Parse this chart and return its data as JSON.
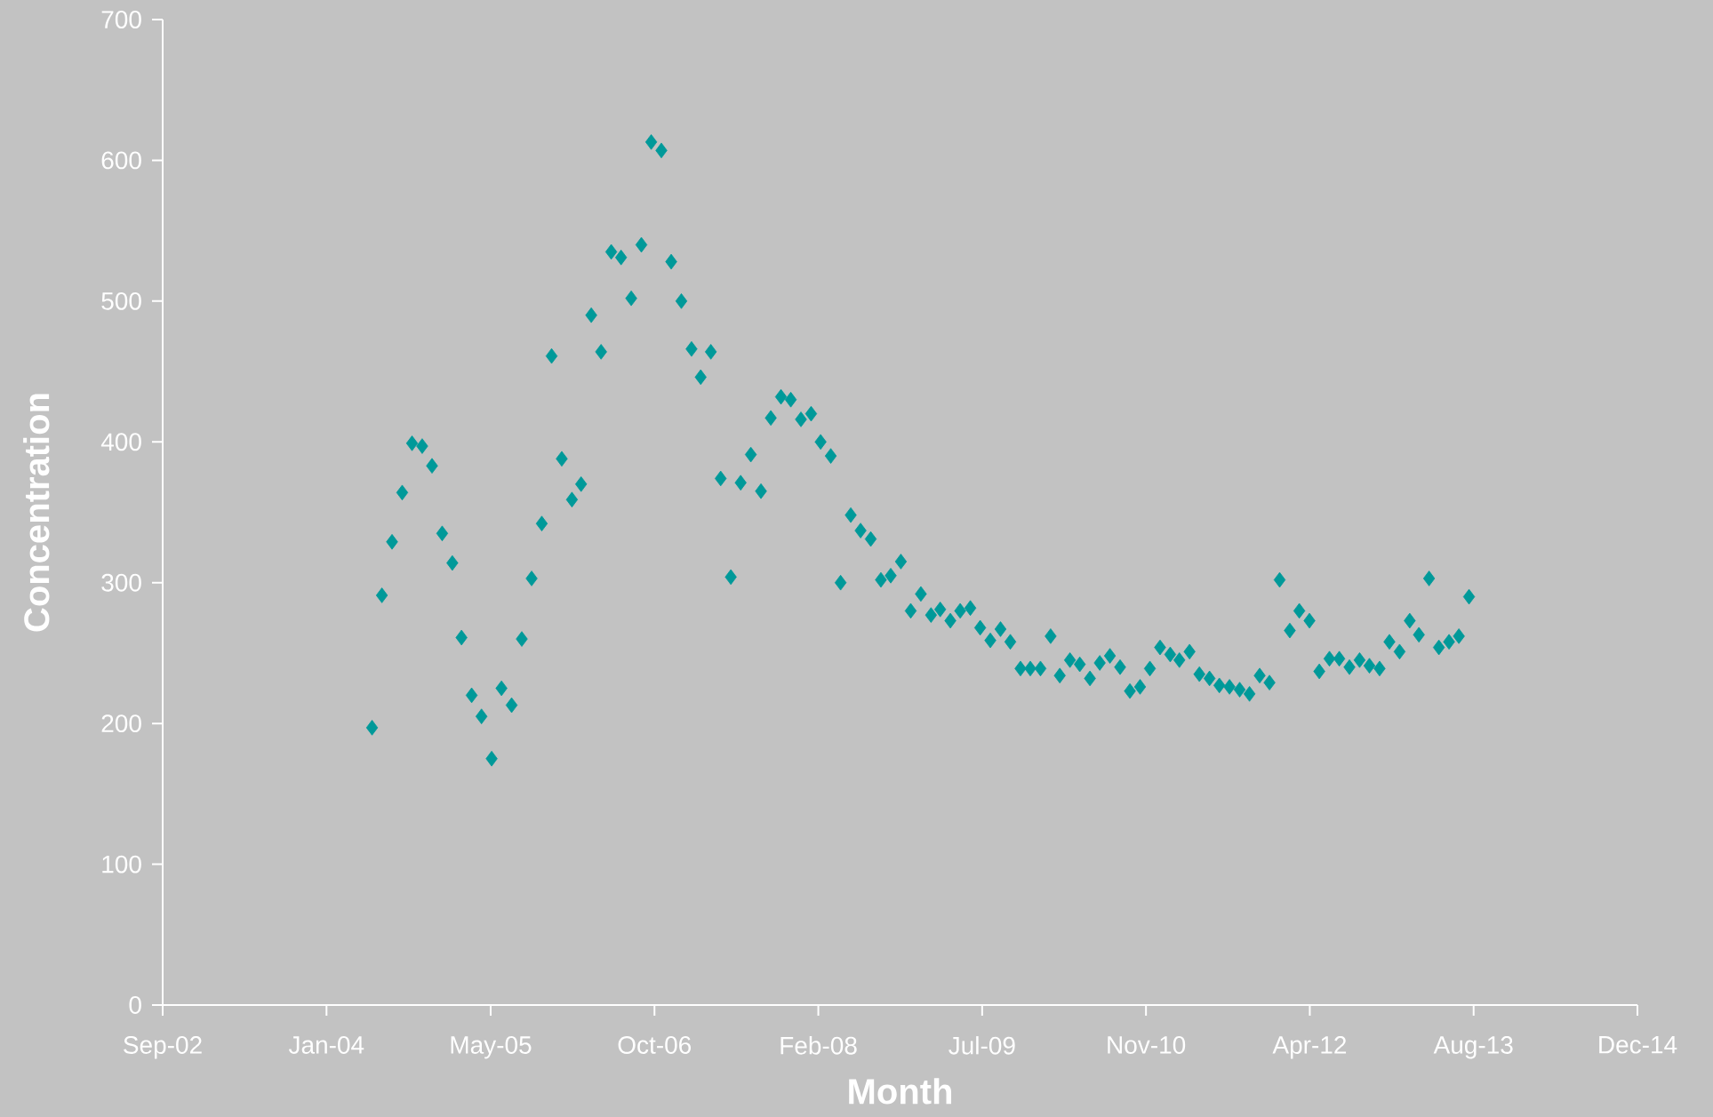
{
  "chart_data": {
    "type": "scatter",
    "xlabel": "Month",
    "ylabel": "Concentration",
    "marker": "diamond",
    "xlim": [
      "2002-09-01",
      "2014-12-28"
    ],
    "xticks": [
      {
        "value": "2002-09-01",
        "label": "Sep-02"
      },
      {
        "value": "2004-01-14",
        "label": "Jan-04"
      },
      {
        "value": "2005-05-29",
        "label": "May-05"
      },
      {
        "value": "2006-10-11",
        "label": "Oct-06"
      },
      {
        "value": "2008-02-23",
        "label": "Feb-08"
      },
      {
        "value": "2009-07-07",
        "label": "Jul-09"
      },
      {
        "value": "2010-11-19",
        "label": "Nov-10"
      },
      {
        "value": "2012-04-02",
        "label": "Apr-12"
      },
      {
        "value": "2013-08-15",
        "label": "Aug-13"
      },
      {
        "value": "2014-12-28",
        "label": "Dec-14"
      }
    ],
    "ylim": [
      0,
      700
    ],
    "yticks": [
      0,
      100,
      200,
      300,
      400,
      500,
      600,
      700
    ],
    "x": [
      "2004-06",
      "2004-07",
      "2004-08",
      "2004-09",
      "2004-10",
      "2004-11",
      "2004-12",
      "2005-01",
      "2005-02",
      "2005-03",
      "2005-04",
      "2005-05",
      "2005-06",
      "2005-07",
      "2005-08",
      "2005-09",
      "2005-10",
      "2005-11",
      "2005-12",
      "2006-01",
      "2006-02",
      "2006-03",
      "2006-04",
      "2006-05",
      "2006-06",
      "2006-07",
      "2006-08",
      "2006-09",
      "2006-10",
      "2006-11",
      "2006-12",
      "2007-01",
      "2007-02",
      "2007-03",
      "2007-04",
      "2007-05",
      "2007-06",
      "2007-07",
      "2007-08",
      "2007-09",
      "2007-10",
      "2007-11",
      "2007-12",
      "2008-01",
      "2008-02",
      "2008-03",
      "2008-04",
      "2008-05",
      "2008-06",
      "2008-07",
      "2008-08",
      "2008-09",
      "2008-10",
      "2008-11",
      "2008-12",
      "2009-01",
      "2009-02",
      "2009-03",
      "2009-04",
      "2009-05",
      "2009-06",
      "2009-07",
      "2009-08",
      "2009-09",
      "2009-10",
      "2009-11",
      "2009-12",
      "2010-01",
      "2010-02",
      "2010-03",
      "2010-04",
      "2010-05",
      "2010-06",
      "2010-07",
      "2010-08",
      "2010-09",
      "2010-10",
      "2010-11",
      "2010-12",
      "2011-01",
      "2011-02",
      "2011-03",
      "2011-04",
      "2011-05",
      "2011-06",
      "2011-07",
      "2011-08",
      "2011-09",
      "2011-10",
      "2011-11",
      "2011-12",
      "2012-01",
      "2012-02",
      "2012-03",
      "2012-04",
      "2012-05",
      "2012-06",
      "2012-07",
      "2012-08",
      "2012-09",
      "2012-10",
      "2012-11",
      "2012-12",
      "2013-01",
      "2013-02",
      "2013-03",
      "2013-04",
      "2013-05",
      "2013-06",
      "2013-07",
      "2013-08"
    ],
    "series": [
      {
        "color": "#009999",
        "values": [
          197,
          291,
          329,
          364,
          399,
          397,
          383,
          335,
          314,
          261,
          220,
          205,
          175,
          225,
          213,
          260,
          303,
          342,
          461,
          388,
          359,
          370,
          490,
          464,
          535,
          531,
          502,
          540,
          613,
          607,
          528,
          500,
          466,
          446,
          464,
          374,
          304,
          371,
          391,
          365,
          417,
          432,
          430,
          416,
          420,
          400,
          390,
          300,
          348,
          337,
          331,
          302,
          305,
          315,
          280,
          292,
          277,
          281,
          273,
          280,
          282,
          268,
          259,
          267,
          258,
          239,
          239,
          239,
          262,
          234,
          245,
          242,
          232,
          243,
          248,
          240,
          223,
          226,
          239,
          254,
          249,
          245,
          251,
          235,
          232,
          227,
          226,
          224,
          221,
          234,
          229,
          302,
          266,
          280,
          273,
          237,
          246,
          246,
          240,
          245,
          241,
          239,
          258,
          251,
          273,
          263,
          303,
          254,
          258,
          262,
          290
        ]
      }
    ]
  }
}
